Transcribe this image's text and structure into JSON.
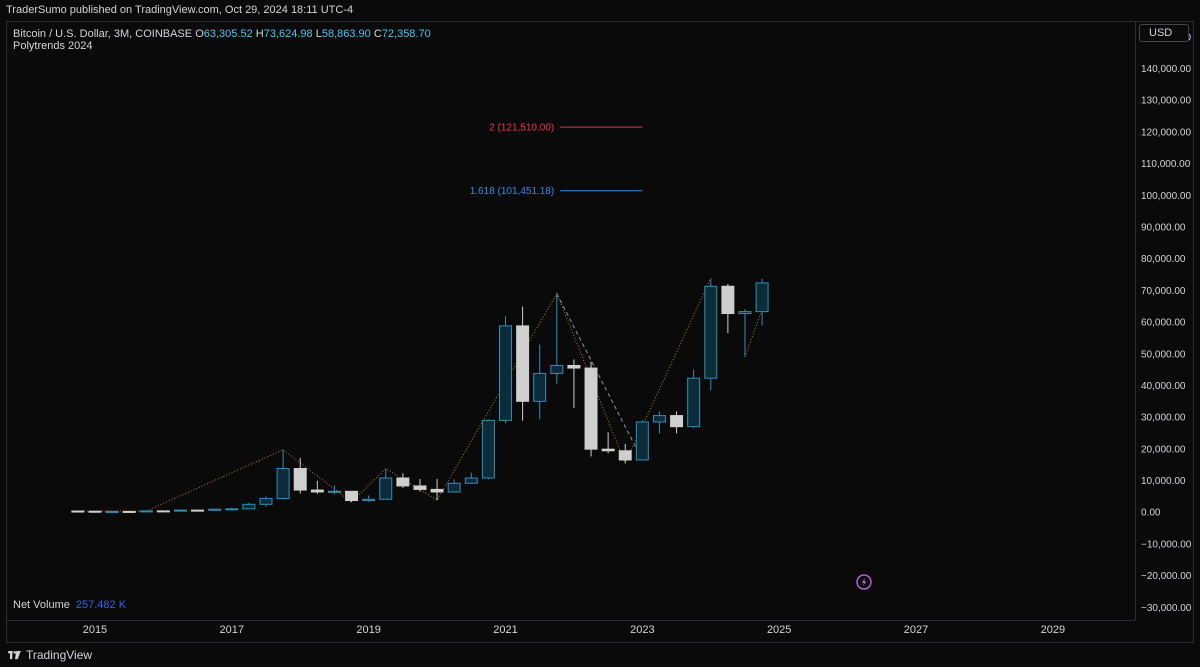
{
  "header": {
    "banner": "TraderSumo published on TradingView.com, Oct 29, 2024 18:11 UTC-4"
  },
  "legend": {
    "symbol": "Bitcoin / U.S. Dollar, 3M, COINBASE",
    "o_label": "O",
    "o_value": "63,305.52",
    "h_label": "H",
    "h_value": "73,624.98",
    "l_label": "L",
    "l_value": "58,863.90",
    "c_label": "C",
    "c_value": "72,358.70",
    "indicator": "Polytrends 2024"
  },
  "net_volume": {
    "label": "Net Volume",
    "value": "257.482 K"
  },
  "currency_button": "USD",
  "footer": {
    "brand": "TradingView"
  },
  "colors": {
    "up": "#2e8fb8",
    "down": "#cfcfcf",
    "trend": "#c77a1a",
    "fib2": "#f0304f",
    "fib1618": "#2d8cf0",
    "background": "#0a0a0a"
  },
  "icons": [
    "lightning-icon",
    "tradingview-logo-icon"
  ],
  "chart_data": {
    "type": "candlestick",
    "y_axis": {
      "ticks": [
        "150,000.00",
        "140,000.00",
        "130,000.00",
        "120,000.00",
        "110,000.00",
        "100,000.00",
        "90,000.00",
        "80,000.00",
        "70,000.00",
        "60,000.00",
        "50,000.00",
        "40,000.00",
        "30,000.00",
        "20,000.00",
        "10,000.00",
        "0.00",
        "−10,000.00",
        "−20,000.00",
        "−30,000.00"
      ],
      "range": [
        -34000,
        155000
      ]
    },
    "x_axis": {
      "ticks": [
        "2015",
        "2017",
        "2019",
        "2021",
        "2023",
        "2025",
        "2027",
        "2029"
      ],
      "range": [
        2013.7,
        2030.2
      ]
    },
    "fib_levels": [
      {
        "label": "2 (121,510.00)",
        "value": 121510,
        "color": "#f0304f",
        "x_start": 2021.8,
        "x_end": 2023.0
      },
      {
        "label": "1.618 (101,451.18)",
        "value": 101451.18,
        "color": "#2d8cf0",
        "x_start": 2021.8,
        "x_end": 2023.0
      }
    ],
    "candles": [
      {
        "t": 2014.75,
        "o": 380,
        "h": 480,
        "l": 310,
        "c": 320
      },
      {
        "t": 2015.0,
        "o": 320,
        "h": 330,
        "l": 160,
        "c": 245
      },
      {
        "t": 2015.25,
        "o": 245,
        "h": 260,
        "l": 200,
        "c": 250
      },
      {
        "t": 2015.5,
        "o": 250,
        "h": 300,
        "l": 190,
        "c": 235
      },
      {
        "t": 2015.75,
        "o": 235,
        "h": 500,
        "l": 230,
        "c": 430
      },
      {
        "t": 2016.0,
        "o": 430,
        "h": 470,
        "l": 350,
        "c": 415
      },
      {
        "t": 2016.25,
        "o": 415,
        "h": 780,
        "l": 410,
        "c": 670
      },
      {
        "t": 2016.5,
        "o": 670,
        "h": 760,
        "l": 480,
        "c": 610
      },
      {
        "t": 2016.75,
        "o": 610,
        "h": 980,
        "l": 600,
        "c": 960
      },
      {
        "t": 2017.0,
        "o": 960,
        "h": 1350,
        "l": 750,
        "c": 1080
      },
      {
        "t": 2017.25,
        "o": 1080,
        "h": 3000,
        "l": 1060,
        "c": 2500
      },
      {
        "t": 2017.5,
        "o": 2500,
        "h": 5000,
        "l": 1800,
        "c": 4350
      },
      {
        "t": 2017.75,
        "o": 4350,
        "h": 19700,
        "l": 4000,
        "c": 13800
      },
      {
        "t": 2018.0,
        "o": 13800,
        "h": 17200,
        "l": 5900,
        "c": 7000
      },
      {
        "t": 2018.25,
        "o": 7000,
        "h": 9900,
        "l": 5800,
        "c": 6400
      },
      {
        "t": 2018.5,
        "o": 6400,
        "h": 8500,
        "l": 5800,
        "c": 6600
      },
      {
        "t": 2018.75,
        "o": 6600,
        "h": 6700,
        "l": 3200,
        "c": 3700
      },
      {
        "t": 2019.0,
        "o": 3700,
        "h": 5300,
        "l": 3300,
        "c": 4100
      },
      {
        "t": 2019.25,
        "o": 4100,
        "h": 13800,
        "l": 4000,
        "c": 10800
      },
      {
        "t": 2019.5,
        "o": 10800,
        "h": 12300,
        "l": 7700,
        "c": 8300
      },
      {
        "t": 2019.75,
        "o": 8300,
        "h": 10500,
        "l": 6500,
        "c": 7200
      },
      {
        "t": 2020.0,
        "o": 7200,
        "h": 10500,
        "l": 3800,
        "c": 6400
      },
      {
        "t": 2020.25,
        "o": 6400,
        "h": 10400,
        "l": 6200,
        "c": 9150
      },
      {
        "t": 2020.5,
        "o": 9150,
        "h": 12500,
        "l": 8900,
        "c": 10800
      },
      {
        "t": 2020.75,
        "o": 10800,
        "h": 29300,
        "l": 10400,
        "c": 29000
      },
      {
        "t": 2021.0,
        "o": 29000,
        "h": 61800,
        "l": 28100,
        "c": 58800
      },
      {
        "t": 2021.25,
        "o": 58800,
        "h": 64900,
        "l": 28900,
        "c": 35000
      },
      {
        "t": 2021.5,
        "o": 35000,
        "h": 52900,
        "l": 29300,
        "c": 43800
      },
      {
        "t": 2021.75,
        "o": 43800,
        "h": 69000,
        "l": 40600,
        "c": 46300
      },
      {
        "t": 2022.0,
        "o": 46300,
        "h": 48200,
        "l": 32900,
        "c": 45500
      },
      {
        "t": 2022.25,
        "o": 45500,
        "h": 47500,
        "l": 17600,
        "c": 19900
      },
      {
        "t": 2022.5,
        "o": 19900,
        "h": 25200,
        "l": 18600,
        "c": 19400
      },
      {
        "t": 2022.75,
        "o": 19400,
        "h": 21500,
        "l": 15500,
        "c": 16500
      },
      {
        "t": 2023.0,
        "o": 16500,
        "h": 29000,
        "l": 16500,
        "c": 28500
      },
      {
        "t": 2023.25,
        "o": 28500,
        "h": 31800,
        "l": 24800,
        "c": 30500
      },
      {
        "t": 2023.5,
        "o": 30500,
        "h": 31800,
        "l": 24900,
        "c": 27000
      },
      {
        "t": 2023.75,
        "o": 27000,
        "h": 45000,
        "l": 26500,
        "c": 42300
      },
      {
        "t": 2024.0,
        "o": 42300,
        "h": 73800,
        "l": 38500,
        "c": 71300
      },
      {
        "t": 2024.25,
        "o": 71300,
        "h": 72000,
        "l": 56500,
        "c": 62700
      },
      {
        "t": 2024.5,
        "o": 62700,
        "h": 64100,
        "l": 49000,
        "c": 63300
      },
      {
        "t": 2024.75,
        "o": 63300,
        "h": 73625,
        "l": 58864,
        "c": 72359
      }
    ],
    "trend_lines": [
      {
        "style": "dotted",
        "points": [
          [
            2014.75,
            400
          ],
          [
            2015.75,
            400
          ],
          [
            2017.75,
            19700
          ],
          [
            2018.75,
            3200
          ],
          [
            2019.25,
            13800
          ],
          [
            2020.0,
            3800
          ],
          [
            2021.75,
            69000
          ],
          [
            2022.75,
            15500
          ],
          [
            2024.0,
            73800
          ]
        ]
      },
      {
        "style": "dotted",
        "points": [
          [
            2024.5,
            49000
          ],
          [
            2024.75,
            64000
          ]
        ]
      },
      {
        "style": "dashed",
        "points": [
          [
            2021.75,
            69000
          ],
          [
            2023.0,
            16500
          ]
        ]
      }
    ]
  }
}
